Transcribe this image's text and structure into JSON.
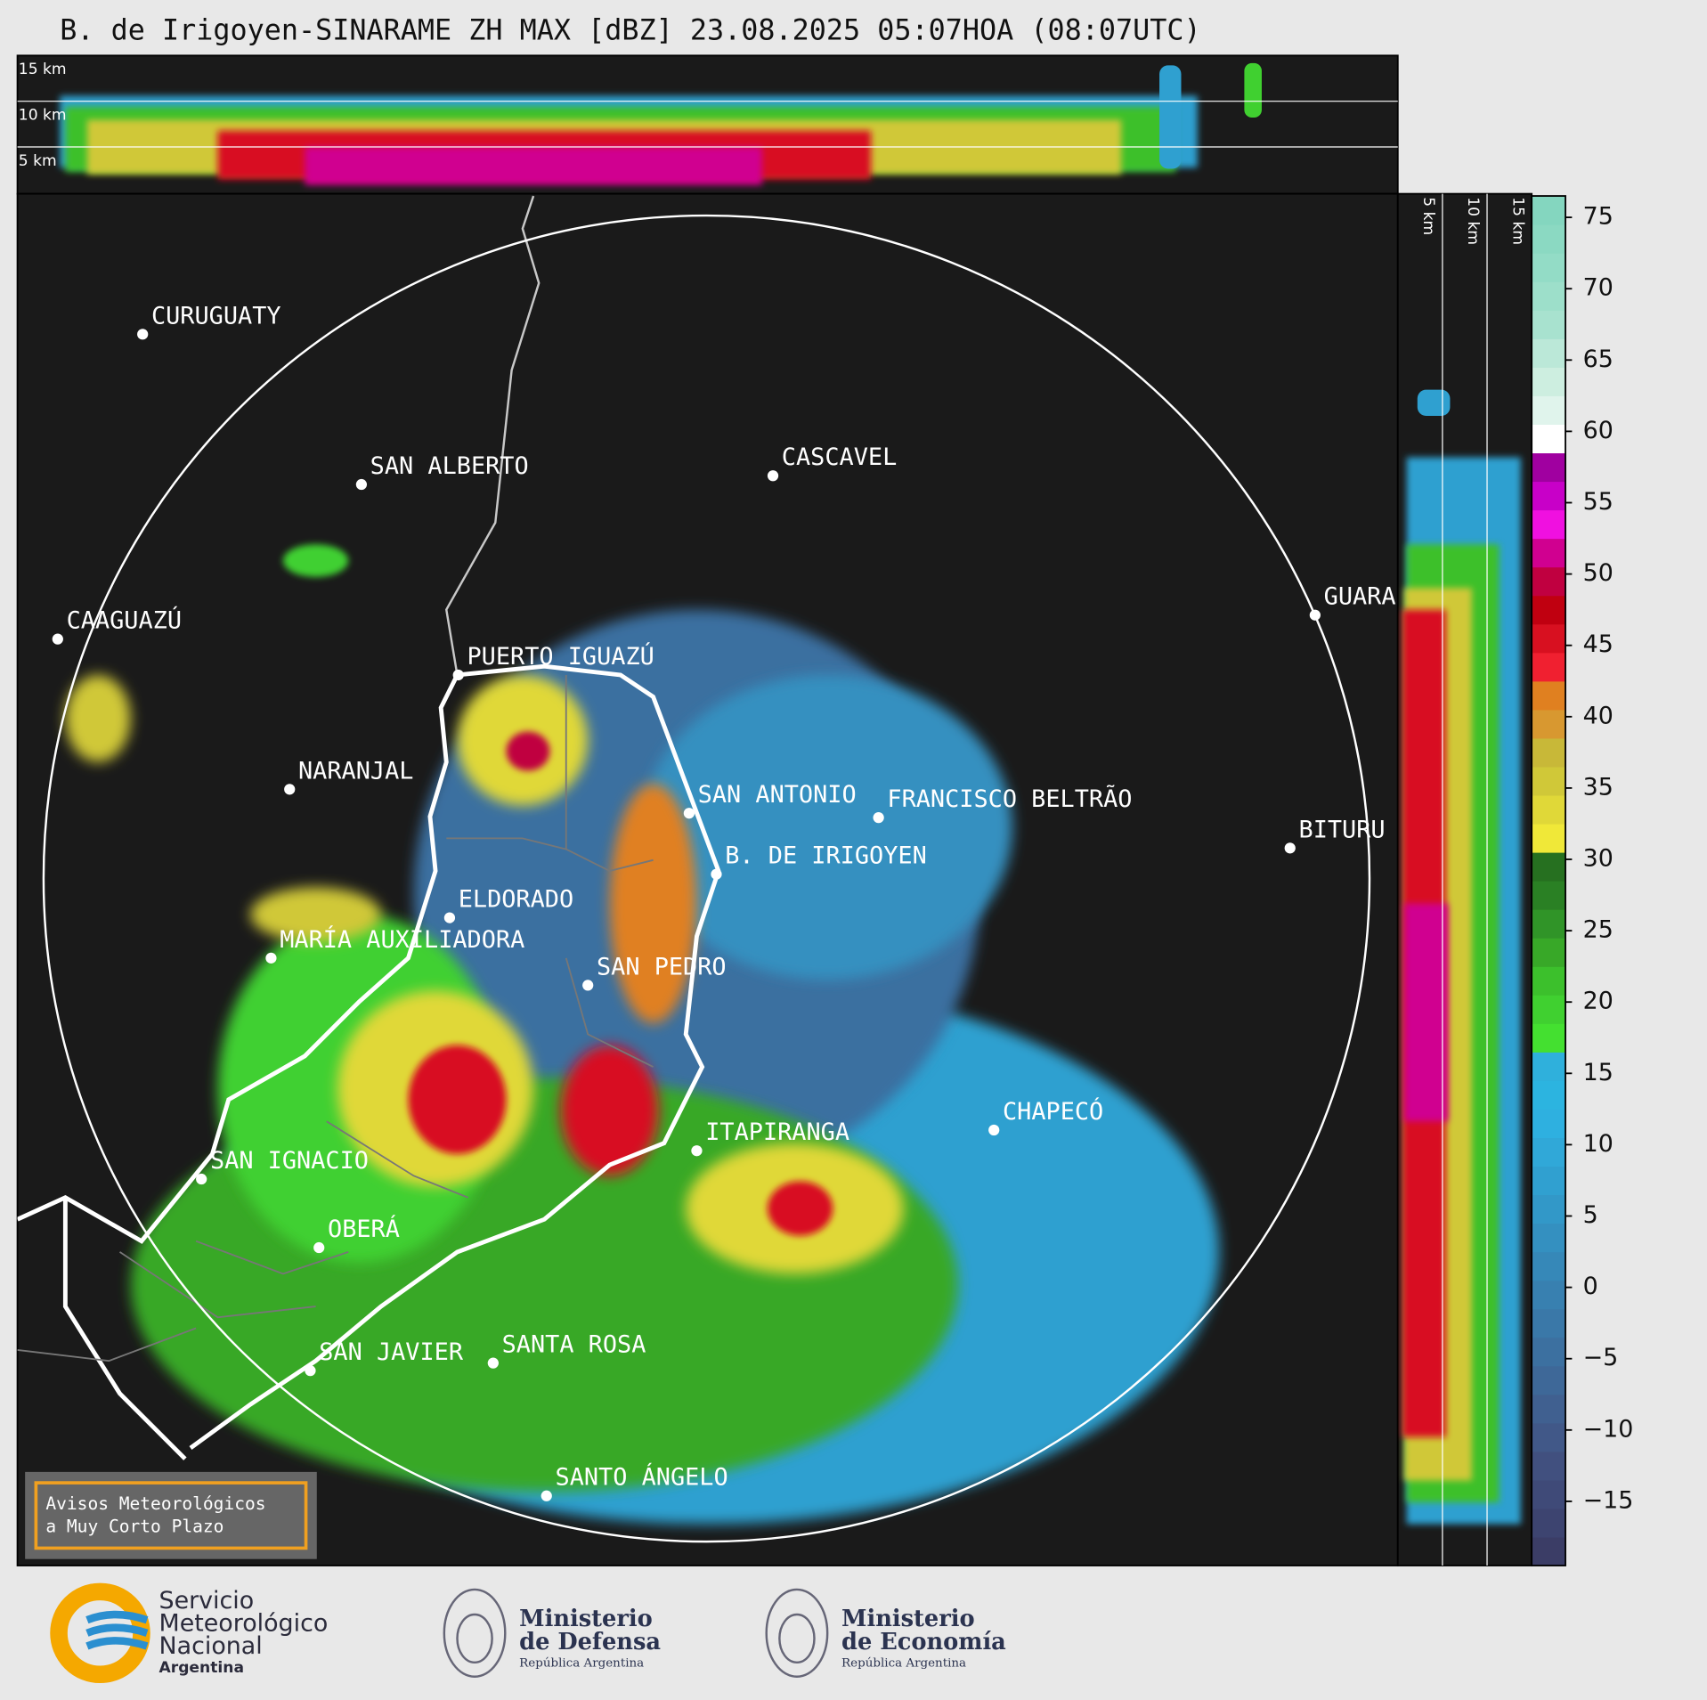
{
  "title": "B. de Irigoyen-SINARAME ZH MAX [dBZ] 23.08.2025 05:07HOA (08:07UTC)",
  "cross_section_heights": [
    "15 km",
    "10 km",
    "5 km"
  ],
  "cities": [
    "CURUGUATY",
    "SAN ALBERTO",
    "CASCAVEL",
    "CAAGUAZÚ",
    "GUARA",
    "PUERTO IGUAZÚ",
    "NARANJAL",
    "SAN ANTONIO",
    "FRANCISCO BELTRÃO",
    "B. DE IRIGOYEN",
    "BITURU",
    "ELDORADO",
    "MARÍA AUXILIADORA",
    "SAN PEDRO",
    "CHAPECÓ",
    "ITAPIRANGA",
    "SAN IGNACIO",
    "OBERÁ",
    "SAN JAVIER",
    "SANTA ROSA",
    "SANTO ÁNGELO"
  ],
  "colorbar": {
    "lim": [
      -19.5,
      76.5
    ],
    "ticks": [
      75,
      70,
      65,
      60,
      55,
      50,
      45,
      40,
      35,
      30,
      25,
      20,
      15,
      10,
      5,
      0,
      {
        "value": -5,
        "label": "−5"
      },
      {
        "value": -10,
        "label": "−10"
      },
      {
        "value": -15,
        "label": "−15"
      }
    ],
    "colors": [
      "#3b3d66",
      "#3d4470",
      "#3f4a78",
      "#41507f",
      "#415888",
      "#406090",
      "#3e6898",
      "#3c70a0",
      "#3a78a8",
      "#3880b0",
      "#3688b8",
      "#3490c0",
      "#3298c8",
      "#30a0d0",
      "#30a8d8",
      "#2eb0e0",
      "#2cb4e0",
      "#2fb0dc",
      "#44e030",
      "#40d030",
      "#3cc02c",
      "#38a828",
      "#309428",
      "#2a8024",
      "#267020",
      "#f0e838",
      "#e0d838",
      "#d0c838",
      "#c8b838",
      "#d89830",
      "#e08020",
      "#f02030",
      "#d81020",
      "#c00010",
      "#c00040",
      "#d00090",
      "#f010e0",
      "#c800c8",
      "#a000a0",
      "#ffffff",
      "#e0f4ec",
      "#cdeee0",
      "#bbe8d8",
      "#a8e2cf",
      "#9ddfca",
      "#93dcc6",
      "#8bd9c2",
      "#84d6bf"
    ]
  },
  "notice": [
    "Avisos Meteorológicos",
    "a Muy Corto Plazo"
  ],
  "logos": [
    {
      "lines": [
        "Servicio",
        "Meteorológico",
        "Nacional",
        "Argentina"
      ]
    },
    {
      "lines": [
        "Ministerio",
        "de Defensa",
        "República Argentina"
      ]
    },
    {
      "lines": [
        "Ministerio",
        "de Economía",
        "República Argentina"
      ]
    }
  ]
}
